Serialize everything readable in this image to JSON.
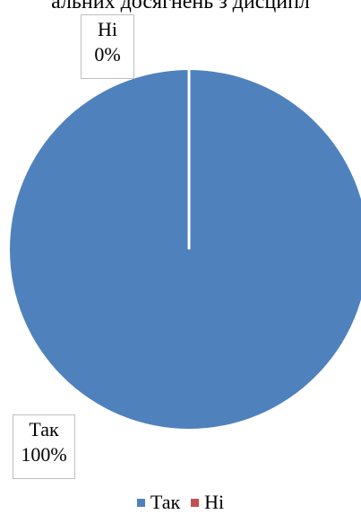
{
  "chart_data": {
    "type": "pie",
    "title": "альних досягнень з дисципл",
    "slices": [
      {
        "name": "Так",
        "value": 100,
        "label": "100%",
        "color": "#4f81bd"
      },
      {
        "name": "Ні",
        "value": 0,
        "label": "0%",
        "color": "#c0504d"
      }
    ],
    "legend_position": "bottom"
  }
}
